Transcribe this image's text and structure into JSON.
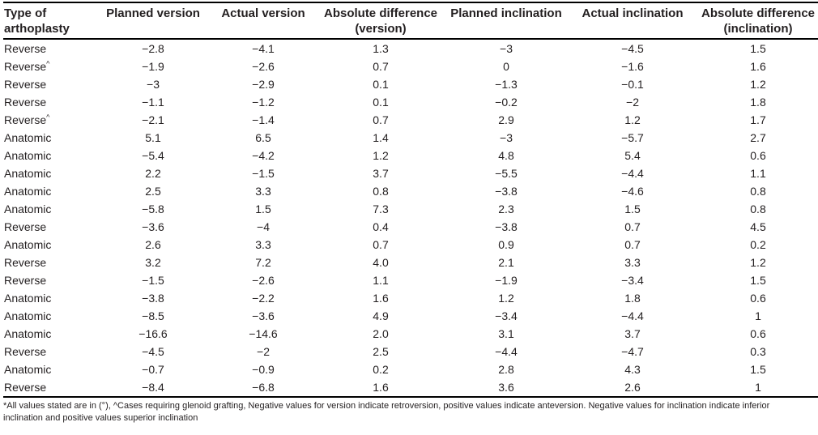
{
  "colors": {
    "background": "#ffffff",
    "text": "#231f20",
    "border": "#000000"
  },
  "table": {
    "columns": [
      {
        "line1": "Type of",
        "line2": "arthoplasty"
      },
      {
        "line1": "Planned version",
        "line2": ""
      },
      {
        "line1": "Actual version",
        "line2": ""
      },
      {
        "line1": "Absolute difference",
        "line2": "(version)"
      },
      {
        "line1": "Planned inclination",
        "line2": ""
      },
      {
        "line1": "Actual inclination",
        "line2": ""
      },
      {
        "line1": "Absolute difference",
        "line2": "(inclination)"
      }
    ],
    "rows": [
      {
        "type": "Reverse",
        "sup": "",
        "values": [
          "−2.8",
          "−4.1",
          "1.3",
          "−3",
          "−4.5",
          "1.5"
        ]
      },
      {
        "type": "Reverse",
        "sup": "^",
        "values": [
          "−1.9",
          "−2.6",
          "0.7",
          "0",
          "−1.6",
          "1.6"
        ]
      },
      {
        "type": "Reverse",
        "sup": "",
        "values": [
          "−3",
          "−2.9",
          "0.1",
          "−1.3",
          "−0.1",
          "1.2"
        ]
      },
      {
        "type": "Reverse",
        "sup": "",
        "values": [
          "−1.1",
          "−1.2",
          "0.1",
          "−0.2",
          "−2",
          "1.8"
        ]
      },
      {
        "type": "Reverse",
        "sup": "^",
        "values": [
          "−2.1",
          "−1.4",
          "0.7",
          "2.9",
          "1.2",
          "1.7"
        ]
      },
      {
        "type": "Anatomic",
        "sup": "",
        "values": [
          "5.1",
          "6.5",
          "1.4",
          "−3",
          "−5.7",
          "2.7"
        ]
      },
      {
        "type": "Anatomic",
        "sup": "",
        "values": [
          "−5.4",
          "−4.2",
          "1.2",
          "4.8",
          "5.4",
          "0.6"
        ]
      },
      {
        "type": "Anatomic",
        "sup": "",
        "values": [
          "2.2",
          "−1.5",
          "3.7",
          "−5.5",
          "−4.4",
          "1.1"
        ]
      },
      {
        "type": "Anatomic",
        "sup": "",
        "values": [
          "2.5",
          "3.3",
          "0.8",
          "−3.8",
          "−4.6",
          "0.8"
        ]
      },
      {
        "type": "Anatomic",
        "sup": "",
        "values": [
          "−5.8",
          "1.5",
          "7.3",
          "2.3",
          "1.5",
          "0.8"
        ]
      },
      {
        "type": "Reverse",
        "sup": "",
        "values": [
          "−3.6",
          "−4",
          "0.4",
          "−3.8",
          "0.7",
          "4.5"
        ]
      },
      {
        "type": "Anatomic",
        "sup": "",
        "values": [
          "2.6",
          "3.3",
          "0.7",
          "0.9",
          "0.7",
          "0.2"
        ]
      },
      {
        "type": "Reverse",
        "sup": "",
        "values": [
          "3.2",
          "7.2",
          "4.0",
          "2.1",
          "3.3",
          "1.2"
        ]
      },
      {
        "type": "Reverse",
        "sup": "",
        "values": [
          "−1.5",
          "−2.6",
          "1.1",
          "−1.9",
          "−3.4",
          "1.5"
        ]
      },
      {
        "type": "Anatomic",
        "sup": "",
        "values": [
          "−3.8",
          "−2.2",
          "1.6",
          "1.2",
          "1.8",
          "0.6"
        ]
      },
      {
        "type": "Anatomic",
        "sup": "",
        "values": [
          "−8.5",
          "−3.6",
          "4.9",
          "−3.4",
          "−4.4",
          "1"
        ]
      },
      {
        "type": "Anatomic",
        "sup": "",
        "values": [
          "−16.6",
          "−14.6",
          "2.0",
          "3.1",
          "3.7",
          "0.6"
        ]
      },
      {
        "type": "Reverse",
        "sup": "",
        "values": [
          "−4.5",
          "−2",
          "2.5",
          "−4.4",
          "−4.7",
          "0.3"
        ]
      },
      {
        "type": "Anatomic",
        "sup": "",
        "values": [
          "−0.7",
          "−0.9",
          "0.2",
          "2.8",
          "4.3",
          "1.5"
        ]
      },
      {
        "type": "Reverse",
        "sup": "",
        "values": [
          "−8.4",
          "−6.8",
          "1.6",
          "3.6",
          "2.6",
          "1"
        ]
      }
    ],
    "footnote": "*All values stated are in (°), ^Cases requiring glenoid grafting, Negative values for version indicate retroversion, positive values indicate anteversion. Negative values for inclination indicate inferior inclination and positive values superior inclination"
  }
}
